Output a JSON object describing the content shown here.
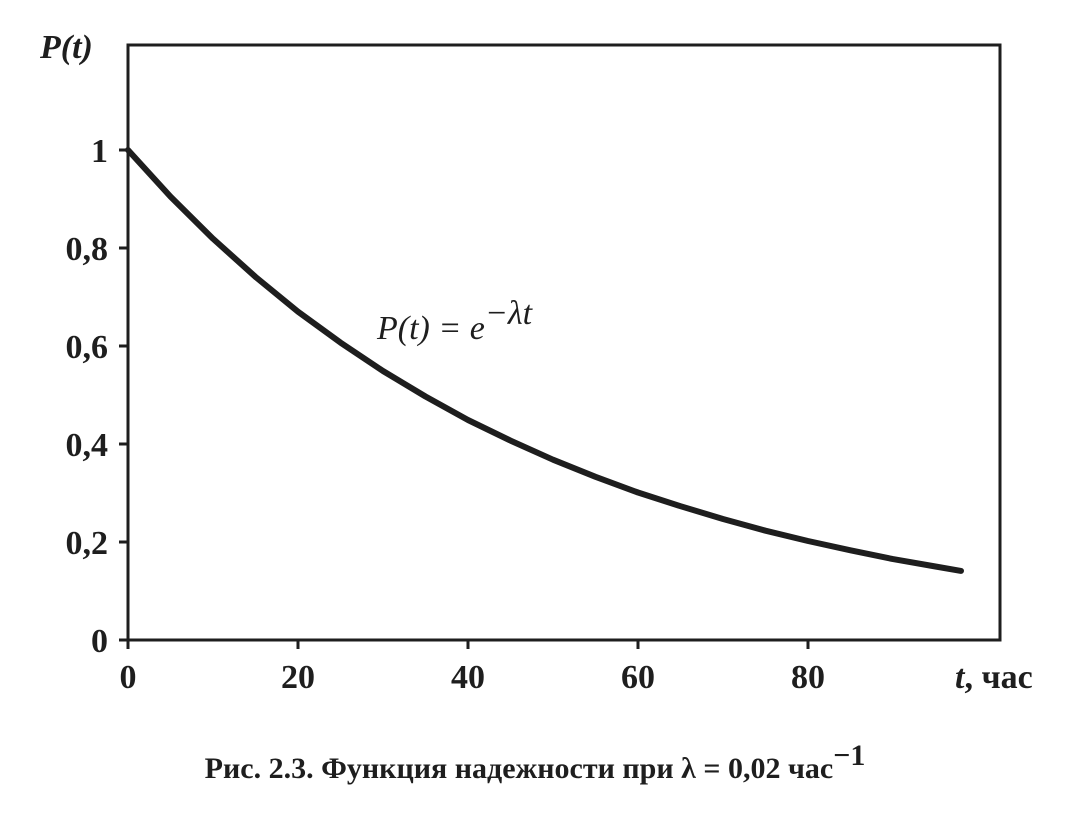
{
  "chart_data": {
    "type": "line",
    "caption": {
      "prefix": "Рис. 2.3.",
      "text": "Функция надежности при λ = 0,02 час",
      "superscript": "−1"
    },
    "ylabel": "P(t)",
    "xlabel": {
      "var": "t",
      "unit": ", час"
    },
    "annotation": {
      "lhs": "P(t) = e",
      "exponent": "−λt"
    },
    "x_ticks": [
      "0",
      "20",
      "40",
      "60",
      "80"
    ],
    "y_ticks": [
      "0",
      "0,2",
      "0,4",
      "0,6",
      "0,8",
      "1"
    ],
    "xlim": [
      0,
      100
    ],
    "ylim": [
      0,
      1.1
    ],
    "grid": false,
    "lambda": 0.02,
    "series": [
      {
        "x": [
          0,
          5,
          10,
          15,
          20,
          25,
          30,
          35,
          40,
          45,
          50,
          55,
          60,
          65,
          70,
          75,
          80,
          85,
          90,
          95,
          98
        ],
        "y": [
          1.0,
          0.905,
          0.819,
          0.741,
          0.67,
          0.607,
          0.549,
          0.497,
          0.449,
          0.407,
          0.368,
          0.333,
          0.301,
          0.273,
          0.247,
          0.223,
          0.202,
          0.183,
          0.165,
          0.15,
          0.141
        ],
        "color": "#1e1e1e"
      }
    ]
  }
}
